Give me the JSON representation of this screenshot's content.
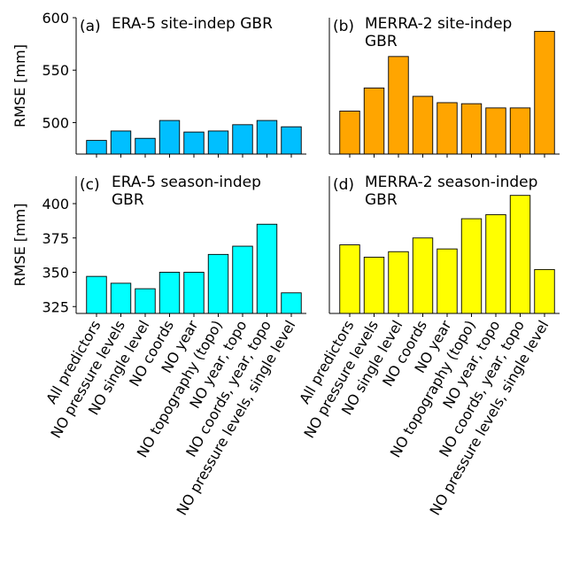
{
  "chart_data": [
    {
      "type": "bar",
      "panel_label": "(a)",
      "title_lines": [
        "ERA-5 site-indep GBR"
      ],
      "ylabel": "RMSE [mm]",
      "ylim": [
        470,
        600
      ],
      "yticks": [
        500,
        550,
        600
      ],
      "color": "#00bfff",
      "values": [
        483,
        492,
        485,
        502,
        491,
        492,
        498,
        502,
        496
      ]
    },
    {
      "type": "bar",
      "panel_label": "(b)",
      "title_lines": [
        "MERRA-2 site-indep",
        "GBR"
      ],
      "ylabel": "",
      "ylim": [
        470,
        600
      ],
      "yticks": [],
      "color": "#ffa500",
      "values": [
        511,
        533,
        563,
        525,
        519,
        518,
        514,
        514,
        587
      ]
    },
    {
      "type": "bar",
      "panel_label": "(c)",
      "title_lines": [
        "ERA-5 season-indep",
        "GBR"
      ],
      "ylabel": "RMSE [mm]",
      "ylim": [
        320,
        420
      ],
      "yticks": [
        325,
        350,
        375,
        400
      ],
      "color": "#00ffff",
      "values": [
        347,
        342,
        338,
        350,
        350,
        363,
        369,
        385,
        335
      ]
    },
    {
      "type": "bar",
      "panel_label": "(d)",
      "title_lines": [
        "MERRA-2 season-indep",
        "GBR"
      ],
      "ylabel": "",
      "ylim": [
        320,
        420
      ],
      "yticks": [],
      "color": "#ffff00",
      "values": [
        370,
        361,
        365,
        375,
        367,
        389,
        392,
        406,
        352
      ]
    }
  ],
  "categories": [
    "All predictors",
    "NO pressure levels",
    "NO single level",
    "NO coords",
    "NO year",
    "NO topography (topo)",
    "NO year, topo",
    "NO coords, year, topo",
    "NO pressure levels, single level"
  ]
}
